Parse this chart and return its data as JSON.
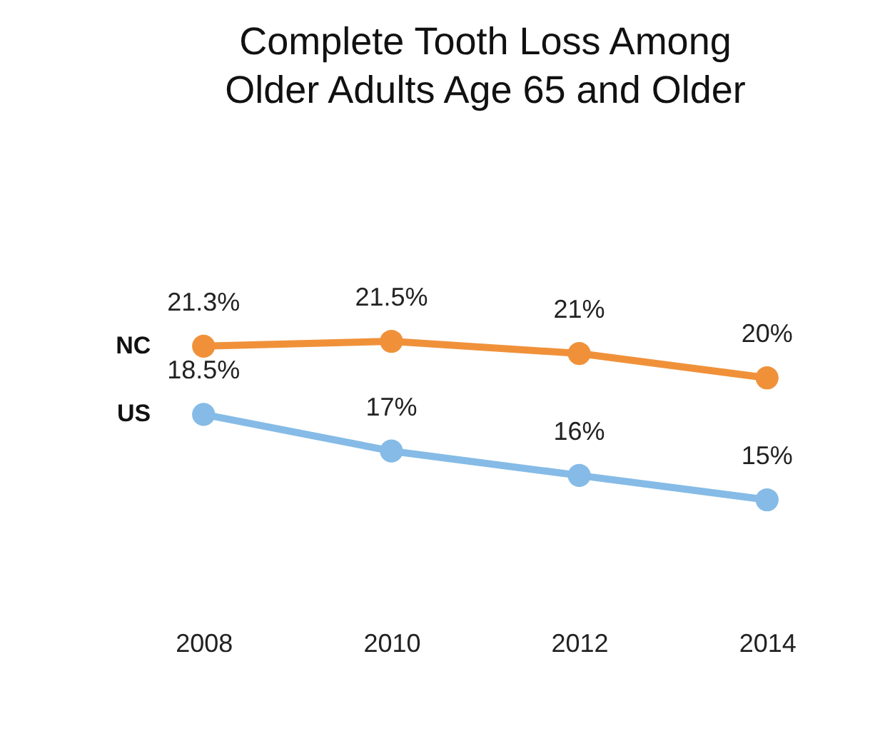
{
  "chart_data": {
    "type": "line",
    "title": "Complete Tooth Loss Among Older Adults Age 65 and Older",
    "categories": [
      "2008",
      "2010",
      "2012",
      "2014"
    ],
    "series": [
      {
        "name": "NC",
        "color": "#f0913a",
        "values": [
          21.3,
          21.5,
          21,
          20
        ],
        "value_labels": [
          "21.3%",
          "21.5%",
          "21%",
          "20%"
        ]
      },
      {
        "name": "US",
        "color": "#85bbe6",
        "values": [
          18.5,
          17,
          16,
          15
        ],
        "value_labels": [
          "18.5%",
          "17%",
          "16%",
          "15%"
        ]
      }
    ],
    "marker": "circle",
    "line_style": "solid",
    "grid": false,
    "legend": false,
    "tick_labels": "x"
  }
}
